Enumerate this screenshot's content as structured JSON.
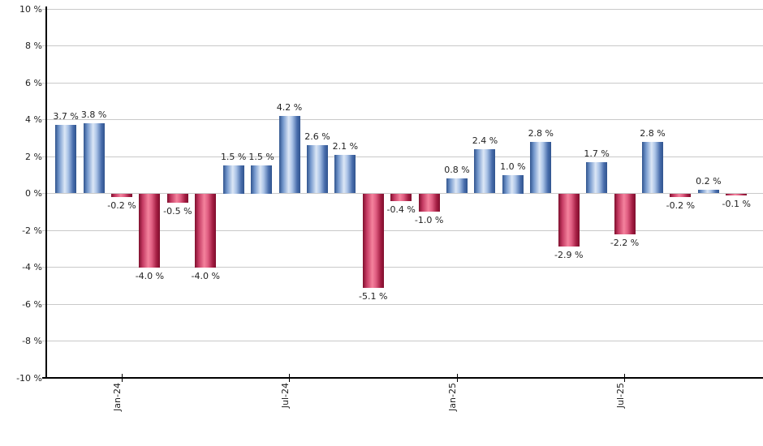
{
  "chart_data": {
    "type": "bar",
    "title": "",
    "xlabel": "",
    "ylabel": "",
    "unit": "%",
    "values": [
      3.7,
      3.8,
      -0.2,
      -4.0,
      -0.5,
      -4.0,
      1.5,
      1.5,
      4.2,
      2.6,
      2.1,
      -5.1,
      -0.4,
      -1.0,
      0.8,
      2.4,
      1.0,
      2.8,
      -2.9,
      1.7,
      -2.2,
      2.8,
      -0.2,
      0.2,
      -0.1
    ],
    "labels": [
      "3.7 %",
      "3.8 %",
      "-0.2 %",
      "-4.0 %",
      "-0.5 %",
      "-4.0 %",
      "1.5 %",
      "1.5 %",
      "4.2 %",
      "2.6 %",
      "2.1 %",
      "-5.1 %",
      "-0.4 %",
      "-1.0 %",
      "0.8 %",
      "2.4 %",
      "1.0 %",
      "2.8 %",
      "-2.9 %",
      "1.7 %",
      "-2.2 %",
      "2.8 %",
      "-0.2 %",
      "0.2 %",
      "-0.1 %"
    ],
    "x_ticks": [
      {
        "index": 2,
        "label": "Jan-24"
      },
      {
        "index": 8,
        "label": "Jul-24"
      },
      {
        "index": 14,
        "label": "Jan-25"
      },
      {
        "index": 20,
        "label": "Jul-25"
      }
    ],
    "y_ticks": [
      {
        "value": 10,
        "label": "10 %"
      },
      {
        "value": 8,
        "label": "8 %"
      },
      {
        "value": 6,
        "label": "6 %"
      },
      {
        "value": 4,
        "label": "4 %"
      },
      {
        "value": 2,
        "label": "2 %"
      },
      {
        "value": 0,
        "label": "0 %"
      },
      {
        "value": -2,
        "label": "-2 %"
      },
      {
        "value": -4,
        "label": "-4 %"
      },
      {
        "value": -6,
        "label": "-6 %"
      },
      {
        "value": -8,
        "label": "-8 %"
      },
      {
        "value": -10,
        "label": "-10 %"
      }
    ],
    "ylim": [
      -10,
      10
    ],
    "grid": true,
    "legend": false,
    "colors": {
      "positive_gradient": "linear-gradient(90deg, #30548e 0%, #7397cc 18%, #dce7f6 45%, #a9c2e6 62%, #476cab 85%, #30548e 100%)",
      "negative_gradient": "linear-gradient(90deg, #7f0e2d 0%, #c43a62 18%, #f4829d 45%, #e05e82 62%, #a21c41 85%, #7f0e2d 100%)",
      "gridline": "#c9c9c9",
      "axis": "#000000",
      "text": "#1f1f1f"
    }
  }
}
